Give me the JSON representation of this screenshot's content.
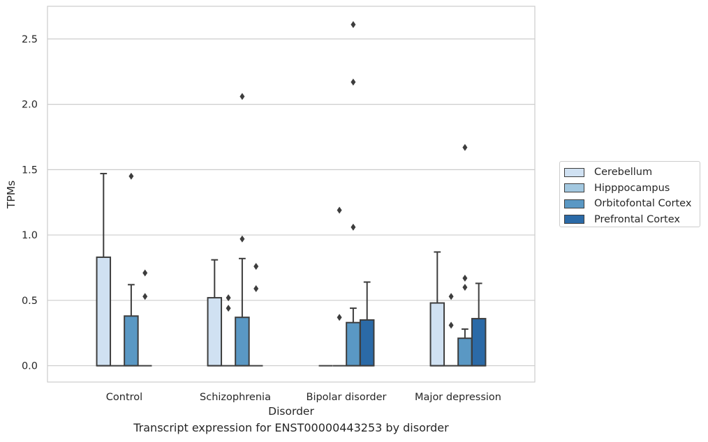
{
  "chart_data": {
    "type": "box",
    "xlabel": "Disorder",
    "ylabel": "TPMs",
    "categories": [
      "Control",
      "Schizophrenia",
      "Bipolar disorder",
      "Major depression"
    ],
    "ylim": [
      -0.125,
      2.75
    ],
    "yticks": [
      0.0,
      0.5,
      1.0,
      1.5,
      2.0,
      2.5
    ],
    "ytick_labels": [
      "0.0",
      "0.5",
      "1.0",
      "1.5",
      "2.0",
      "2.5"
    ],
    "grid": "horizontal",
    "legend_position": "right",
    "series": [
      {
        "name": "Cerebellum",
        "color": "#d0e1f2",
        "boxes": [
          {
            "q1": 0.0,
            "median": 0.0,
            "q3": 0.83,
            "whislo": 0.0,
            "whishi": 1.47,
            "fliers": []
          },
          {
            "q1": 0.0,
            "median": 0.0,
            "q3": 0.52,
            "whislo": 0.0,
            "whishi": 0.81,
            "fliers": []
          },
          {
            "q1": 0.0,
            "median": 0.0,
            "q3": 0.0,
            "whislo": 0.0,
            "whishi": 0.0,
            "fliers": []
          },
          {
            "q1": 0.0,
            "median": 0.0,
            "q3": 0.48,
            "whislo": 0.0,
            "whishi": 0.87,
            "fliers": []
          }
        ]
      },
      {
        "name": "Hipppocampus",
        "color": "#a3c8e0",
        "boxes": [
          {
            "q1": 0.0,
            "median": 0.0,
            "q3": 0.0,
            "whislo": 0.0,
            "whishi": 0.0,
            "fliers": []
          },
          {
            "q1": 0.0,
            "median": 0.0,
            "q3": 0.0,
            "whislo": 0.0,
            "whishi": 0.0,
            "fliers": [
              0.52,
              0.44
            ]
          },
          {
            "q1": 0.0,
            "median": 0.0,
            "q3": 0.0,
            "whislo": 0.0,
            "whishi": 0.0,
            "fliers": [
              1.19,
              0.37
            ]
          },
          {
            "q1": 0.0,
            "median": 0.0,
            "q3": 0.0,
            "whislo": 0.0,
            "whishi": 0.0,
            "fliers": [
              0.53,
              0.31
            ]
          }
        ]
      },
      {
        "name": "Orbitofontal Cortex",
        "color": "#5a98c4",
        "boxes": [
          {
            "q1": 0.0,
            "median": 0.0,
            "q3": 0.38,
            "whislo": 0.0,
            "whishi": 0.62,
            "fliers": [
              1.45
            ]
          },
          {
            "q1": 0.0,
            "median": 0.0,
            "q3": 0.37,
            "whislo": 0.0,
            "whishi": 0.82,
            "fliers": [
              2.06,
              0.97
            ]
          },
          {
            "q1": 0.0,
            "median": 0.0,
            "q3": 0.33,
            "whislo": 0.0,
            "whishi": 0.44,
            "fliers": [
              2.61,
              2.17,
              1.06
            ]
          },
          {
            "q1": 0.0,
            "median": 0.0,
            "q3": 0.21,
            "whislo": 0.0,
            "whishi": 0.28,
            "fliers": [
              1.67,
              0.67,
              0.6
            ]
          }
        ]
      },
      {
        "name": "Prefrontal Cortex",
        "color": "#2b6aa7",
        "boxes": [
          {
            "q1": 0.0,
            "median": 0.0,
            "q3": 0.0,
            "whislo": 0.0,
            "whishi": 0.0,
            "fliers": [
              0.71,
              0.53
            ]
          },
          {
            "q1": 0.0,
            "median": 0.0,
            "q3": 0.0,
            "whislo": 0.0,
            "whishi": 0.0,
            "fliers": [
              0.76,
              0.59
            ]
          },
          {
            "q1": 0.0,
            "median": 0.0,
            "q3": 0.35,
            "whislo": 0.0,
            "whishi": 0.64,
            "fliers": []
          },
          {
            "q1": 0.0,
            "median": 0.0,
            "q3": 0.36,
            "whislo": 0.0,
            "whishi": 0.63,
            "fliers": []
          }
        ]
      }
    ],
    "caption": "Transcript expression for ENST00000443253 by disorder"
  }
}
